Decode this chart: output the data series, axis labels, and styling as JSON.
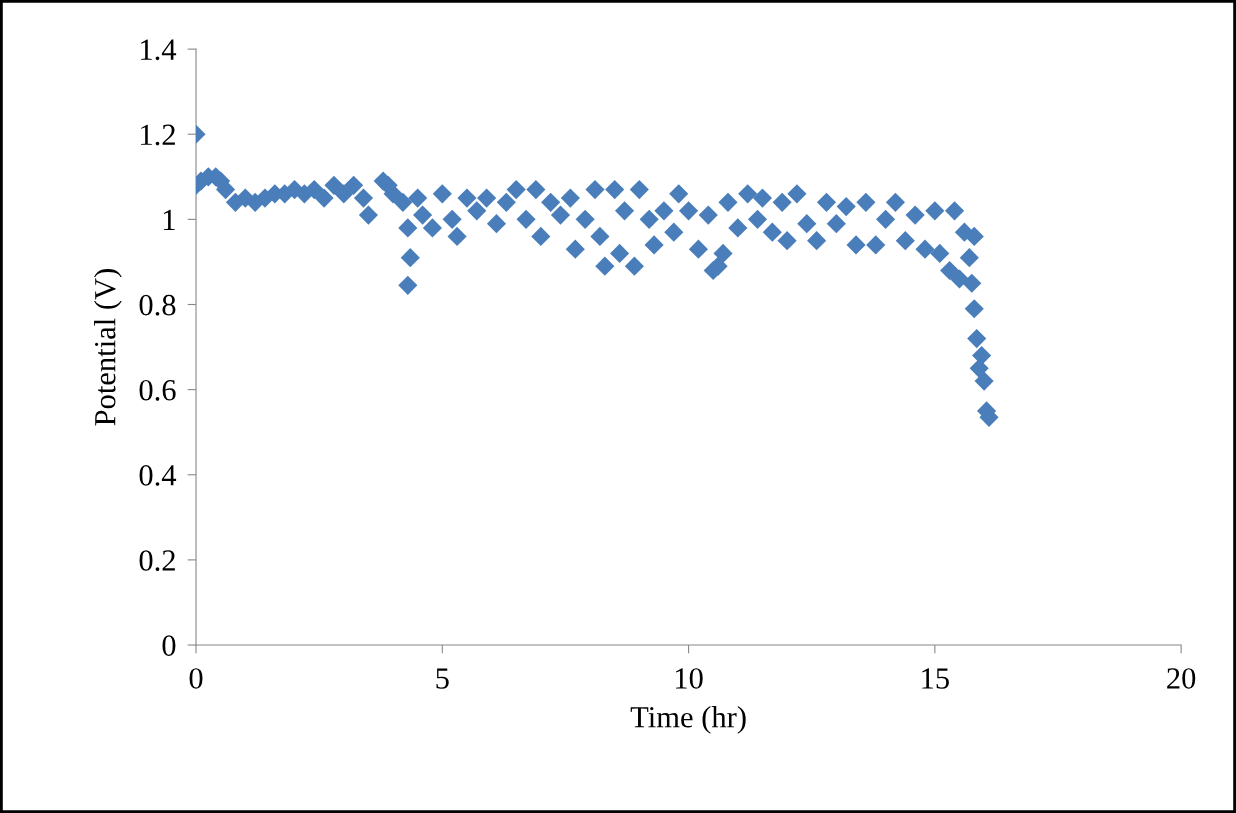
{
  "chart_data": {
    "type": "scatter",
    "xlabel": "Time (hr)",
    "ylabel": "Potential (V)",
    "xlim": [
      0,
      20
    ],
    "xticks": [
      0,
      5,
      10,
      15,
      20
    ],
    "ylim": [
      0,
      1.4
    ],
    "yticks": [
      0,
      0.2,
      0.4,
      0.6,
      0.8,
      1,
      1.2,
      1.4
    ],
    "grid": false,
    "legend": false,
    "marker": "diamond",
    "series": [
      {
        "color": "#4a7ebb",
        "x": [
          0,
          0,
          0.1,
          0.25,
          0.4,
          0.5,
          0.6,
          0.8,
          1.0,
          1.2,
          1.4,
          1.6,
          1.8,
          2.0,
          2.2,
          2.4,
          2.6,
          2.8,
          3.0,
          3.2,
          3.4,
          3.5,
          3.8,
          3.9,
          4.0,
          4.2,
          4.3,
          4.35,
          4.3,
          4.5,
          4.6,
          4.8,
          5.0,
          5.2,
          5.3,
          5.5,
          5.7,
          5.9,
          6.1,
          6.3,
          6.5,
          6.7,
          6.9,
          7.0,
          7.2,
          7.4,
          7.6,
          7.7,
          7.9,
          8.1,
          8.2,
          8.3,
          8.5,
          8.6,
          8.7,
          8.9,
          9.0,
          9.2,
          9.3,
          9.5,
          9.7,
          9.8,
          10.0,
          10.2,
          10.4,
          10.5,
          10.6,
          10.7,
          10.8,
          11.0,
          11.2,
          11.4,
          11.5,
          11.7,
          11.9,
          12.0,
          12.2,
          12.4,
          12.6,
          12.8,
          13.0,
          13.2,
          13.4,
          13.6,
          13.8,
          14.0,
          14.2,
          14.4,
          14.6,
          14.8,
          15.0,
          15.1,
          15.3,
          15.4,
          15.5,
          15.6,
          15.7,
          15.8,
          15.75,
          15.8,
          15.85,
          15.95,
          15.9,
          16.0,
          16.05,
          16.1
        ],
        "values": [
          1.2,
          1.08,
          1.09,
          1.1,
          1.1,
          1.09,
          1.07,
          1.04,
          1.05,
          1.04,
          1.05,
          1.06,
          1.06,
          1.07,
          1.06,
          1.07,
          1.05,
          1.08,
          1.06,
          1.08,
          1.05,
          1.01,
          1.09,
          1.08,
          1.06,
          1.04,
          0.98,
          0.91,
          0.845,
          1.05,
          1.01,
          0.98,
          1.06,
          1.0,
          0.96,
          1.05,
          1.02,
          1.05,
          0.99,
          1.04,
          1.07,
          1.0,
          1.07,
          0.96,
          1.04,
          1.01,
          1.05,
          0.93,
          1.0,
          1.07,
          0.96,
          0.89,
          1.07,
          0.92,
          1.02,
          0.89,
          1.07,
          1.0,
          0.94,
          1.02,
          0.97,
          1.06,
          1.02,
          0.93,
          1.01,
          0.88,
          0.89,
          0.92,
          1.04,
          0.98,
          1.06,
          1.0,
          1.05,
          0.97,
          1.04,
          0.95,
          1.06,
          0.99,
          0.95,
          1.04,
          0.99,
          1.03,
          0.94,
          1.04,
          0.94,
          1.0,
          1.04,
          0.95,
          1.01,
          0.93,
          1.02,
          0.92,
          0.88,
          1.02,
          0.86,
          0.97,
          0.91,
          0.96,
          0.85,
          0.79,
          0.72,
          0.68,
          0.65,
          0.62,
          0.55,
          0.535
        ]
      }
    ]
  }
}
